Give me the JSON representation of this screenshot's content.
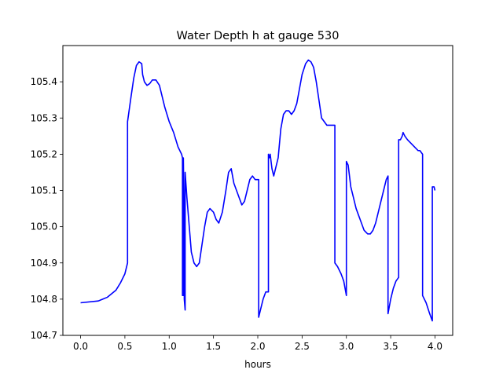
{
  "chart_data": {
    "type": "line",
    "title": "Water Depth h at gauge 530",
    "xlabel": "hours",
    "ylabel": "",
    "xlim": [
      -0.2,
      4.2
    ],
    "ylim": [
      104.7,
      105.5
    ],
    "xticks": [
      0.0,
      0.5,
      1.0,
      1.5,
      2.0,
      2.5,
      3.0,
      3.5,
      4.0
    ],
    "xtick_labels": [
      "0.0",
      "0.5",
      "1.0",
      "1.5",
      "2.0",
      "2.5",
      "3.0",
      "3.5",
      "4.0"
    ],
    "yticks": [
      104.7,
      104.8,
      104.9,
      105.0,
      105.1,
      105.2,
      105.3,
      105.4
    ],
    "ytick_labels": [
      "104.7",
      "104.8",
      "104.9",
      "105.0",
      "105.1",
      "105.2",
      "105.3",
      "105.4"
    ],
    "grid": false,
    "series": [
      {
        "color": "#0000ff",
        "x": [
          0.0,
          0.2,
          0.3,
          0.4,
          0.45,
          0.5,
          0.53,
          0.53,
          0.57,
          0.6,
          0.63,
          0.66,
          0.69,
          0.7,
          0.72,
          0.75,
          0.78,
          0.81,
          0.85,
          0.89,
          0.92,
          0.95,
          1.0,
          1.05,
          1.1,
          1.14,
          1.15,
          1.15,
          1.16,
          1.16,
          1.17,
          1.17,
          1.18,
          1.18,
          1.2,
          1.22,
          1.25,
          1.28,
          1.31,
          1.34,
          1.37,
          1.4,
          1.43,
          1.46,
          1.5,
          1.53,
          1.56,
          1.6,
          1.64,
          1.67,
          1.7,
          1.73,
          1.76,
          1.79,
          1.82,
          1.85,
          1.88,
          1.91,
          1.94,
          1.97,
          2.01,
          2.01,
          2.03,
          2.06,
          2.09,
          2.12,
          2.12,
          2.13,
          2.14,
          2.15,
          2.16,
          2.18,
          2.2,
          2.23,
          2.26,
          2.29,
          2.32,
          2.35,
          2.38,
          2.41,
          2.44,
          2.47,
          2.5,
          2.54,
          2.57,
          2.6,
          2.63,
          2.66,
          2.69,
          2.72,
          2.75,
          2.78,
          2.81,
          2.84,
          2.87,
          2.87,
          2.9,
          2.94,
          2.97,
          3.0,
          3.0,
          3.02,
          3.05,
          3.08,
          3.11,
          3.14,
          3.17,
          3.2,
          3.24,
          3.27,
          3.3,
          3.33,
          3.36,
          3.39,
          3.42,
          3.45,
          3.47,
          3.47,
          3.5,
          3.53,
          3.56,
          3.59,
          3.59,
          3.61,
          3.63,
          3.64,
          3.66,
          3.69,
          3.73,
          3.77,
          3.81,
          3.83,
          3.86,
          3.86,
          3.9,
          3.94,
          3.97,
          3.97,
          3.99,
          4.0
        ],
        "y": [
          104.79,
          104.795,
          104.805,
          104.825,
          104.845,
          104.87,
          104.9,
          105.29,
          105.36,
          105.41,
          105.445,
          105.455,
          105.45,
          105.42,
          105.4,
          105.39,
          105.395,
          105.405,
          105.405,
          105.39,
          105.36,
          105.33,
          105.29,
          105.26,
          105.22,
          105.2,
          105.19,
          104.81,
          104.81,
          105.19,
          105.0,
          104.8,
          104.77,
          105.15,
          105.08,
          105.02,
          104.93,
          104.9,
          104.89,
          104.9,
          104.95,
          105.0,
          105.04,
          105.05,
          105.04,
          105.02,
          105.01,
          105.04,
          105.1,
          105.15,
          105.16,
          105.12,
          105.1,
          105.08,
          105.06,
          105.07,
          105.1,
          105.13,
          105.14,
          105.13,
          105.13,
          104.75,
          104.77,
          104.8,
          104.82,
          104.82,
          105.2,
          105.19,
          105.2,
          105.18,
          105.16,
          105.14,
          105.16,
          105.19,
          105.27,
          105.31,
          105.32,
          105.32,
          105.31,
          105.32,
          105.34,
          105.38,
          105.42,
          105.45,
          105.46,
          105.455,
          105.44,
          105.4,
          105.35,
          105.3,
          105.29,
          105.28,
          105.28,
          105.28,
          105.28,
          104.9,
          104.89,
          104.87,
          104.85,
          104.81,
          105.18,
          105.17,
          105.11,
          105.08,
          105.05,
          105.03,
          105.01,
          104.99,
          104.98,
          104.98,
          104.99,
          105.01,
          105.04,
          105.07,
          105.1,
          105.13,
          105.14,
          104.76,
          104.8,
          104.83,
          104.85,
          104.86,
          105.24,
          105.24,
          105.25,
          105.26,
          105.25,
          105.24,
          105.23,
          105.22,
          105.21,
          105.21,
          105.2,
          104.81,
          104.79,
          104.76,
          104.74,
          105.11,
          105.11,
          105.1
        ]
      }
    ]
  }
}
